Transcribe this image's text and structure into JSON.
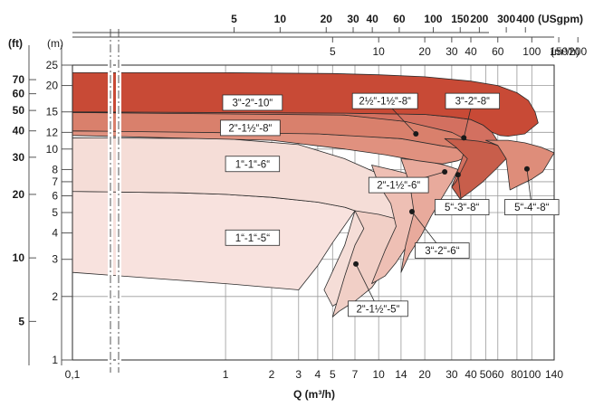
{
  "chart_data": {
    "type": "area",
    "title": "",
    "xlabel": "Q (m³/h)",
    "x_scale": "log",
    "y_scale": "log",
    "xlim": [
      0.1,
      140
    ],
    "ylim": [
      1,
      25
    ],
    "grid": true,
    "x_ticks": [
      {
        "v": 0.1,
        "t": "0,1"
      },
      {
        "v": 1,
        "t": "1"
      },
      {
        "v": 2,
        "t": "2"
      },
      {
        "v": 3,
        "t": "3"
      },
      {
        "v": 4,
        "t": "4"
      },
      {
        "v": 5,
        "t": "5"
      },
      {
        "v": 7,
        "t": "7"
      },
      {
        "v": 10,
        "t": "10"
      },
      {
        "v": 14,
        "t": "14"
      },
      {
        "v": 20,
        "t": "20"
      },
      {
        "v": 30,
        "t": "30"
      },
      {
        "v": 40,
        "t": "40"
      },
      {
        "v": 50,
        "t": "50"
      },
      {
        "v": 60,
        "t": "60"
      },
      {
        "v": 80,
        "t": "80"
      },
      {
        "v": 100,
        "t": "100"
      },
      {
        "v": 140,
        "t": "140"
      }
    ],
    "y_ticks_m": [
      {
        "v": 1,
        "t": "1"
      },
      {
        "v": 2,
        "t": "2"
      },
      {
        "v": 3,
        "t": "3"
      },
      {
        "v": 4,
        "t": "4"
      },
      {
        "v": 5,
        "t": "5"
      },
      {
        "v": 6,
        "t": "6"
      },
      {
        "v": 7,
        "t": "7"
      },
      {
        "v": 8,
        "t": "8"
      },
      {
        "v": 10,
        "t": "10"
      },
      {
        "v": 12,
        "t": "12"
      },
      {
        "v": 15,
        "t": "15"
      },
      {
        "v": 20,
        "t": "20"
      },
      {
        "v": 25,
        "t": "25"
      }
    ],
    "y_ticks_ft": [
      {
        "v": 5,
        "t": "5"
      },
      {
        "v": 10,
        "t": "10"
      },
      {
        "v": 20,
        "t": "20"
      },
      {
        "v": 30,
        "t": "30"
      },
      {
        "v": 40,
        "t": "40"
      },
      {
        "v": 50,
        "t": "50"
      },
      {
        "v": 60,
        "t": "60"
      },
      {
        "v": 70,
        "t": "70"
      }
    ],
    "top_m3h_ticks": [
      5,
      10,
      20,
      30,
      40,
      60,
      100,
      150,
      200,
      300
    ],
    "top_usgpm_ticks": [
      5,
      10,
      20,
      30,
      40,
      60,
      100,
      150,
      200,
      300,
      400
    ],
    "unit_ft": "(ft)",
    "unit_m": "(m)",
    "unit_m3h": "(m³/h)",
    "unit_usgpm": "(USgpm)",
    "series": [
      {
        "name": "1“-1“-5“",
        "color": "#f8e2de",
        "label_at": [
          1.5,
          3.8
        ],
        "points": [
          [
            0.1,
            6.3
          ],
          [
            0.5,
            6.2
          ],
          [
            1,
            6.1
          ],
          [
            2,
            5.9
          ],
          [
            4,
            5.6
          ],
          [
            6,
            5.3
          ],
          [
            7,
            5.1
          ],
          [
            6.2,
            4.5
          ],
          [
            5,
            3.6
          ],
          [
            4,
            2.8
          ],
          [
            3,
            2.15
          ],
          [
            1,
            2.3
          ],
          [
            0.1,
            2.6
          ]
        ]
      },
      {
        "name": "1“-1“-6“",
        "color": "#f5ddd7",
        "label_at": [
          1.5,
          8.5
        ],
        "points": [
          [
            0.1,
            11.3
          ],
          [
            1,
            11.2
          ],
          [
            3,
            10.5
          ],
          [
            6,
            9.0
          ],
          [
            8,
            8.2
          ],
          [
            11,
            7.4
          ],
          [
            16,
            6.5
          ],
          [
            20,
            6.0
          ],
          [
            15,
            4.8
          ],
          [
            11,
            3.4
          ],
          [
            9,
            2.6
          ],
          [
            6,
            1.95
          ],
          [
            5,
            1.8
          ],
          [
            4.4,
            2.15
          ],
          [
            6,
            3.5
          ],
          [
            7,
            5.1
          ],
          [
            6,
            5.3
          ],
          [
            4,
            5.6
          ],
          [
            2,
            5.9
          ],
          [
            1,
            6.1
          ],
          [
            0.5,
            6.2
          ],
          [
            0.1,
            6.3
          ]
        ]
      },
      {
        "name": "2“-1½“-5“",
        "color": "#f1cfc6",
        "points": [
          [
            7,
            5.1
          ],
          [
            10,
            4.9
          ],
          [
            14,
            4.6
          ],
          [
            16,
            4.4
          ],
          [
            13,
            3.2
          ],
          [
            11,
            2.7
          ],
          [
            9,
            2.2
          ],
          [
            7,
            1.9
          ],
          [
            5.5,
            1.7
          ],
          [
            5,
            1.6
          ],
          [
            6,
            2.5
          ],
          [
            7,
            3.5
          ],
          [
            8,
            4.2
          ]
        ]
      },
      {
        "name": "2“-1½“-6“",
        "color": "#eebfb4",
        "points": [
          [
            9,
            8.4
          ],
          [
            12,
            8.0
          ],
          [
            16,
            7.6
          ],
          [
            20,
            7.3
          ],
          [
            24,
            7.0
          ],
          [
            28,
            6.8
          ],
          [
            26,
            6.3
          ],
          [
            22,
            5.3
          ],
          [
            20,
            4.7
          ],
          [
            17,
            3.9
          ],
          [
            15,
            3.4
          ],
          [
            13,
            2.9
          ],
          [
            11,
            2.5
          ],
          [
            9,
            2.3
          ],
          [
            11,
            3.3
          ],
          [
            13,
            4.3
          ],
          [
            12,
            5.5
          ],
          [
            10,
            6.8
          ]
        ]
      },
      {
        "name": "3“-2“-6“",
        "color": "#e8aa9c",
        "points": [
          [
            14,
            9.0
          ],
          [
            20,
            8.8
          ],
          [
            27,
            8.4
          ],
          [
            33,
            8.0
          ],
          [
            30,
            7.0
          ],
          [
            26,
            5.9
          ],
          [
            22,
            4.8
          ],
          [
            19,
            3.9
          ],
          [
            16,
            3.2
          ],
          [
            14,
            2.6
          ],
          [
            15,
            3.5
          ],
          [
            17,
            5.0
          ],
          [
            16,
            6.8
          ]
        ]
      },
      {
        "name": "2“-1½“-8“",
        "color": "#e0917f",
        "label_at": [
          1.45,
          12.6
        ],
        "points": [
          [
            0.1,
            12.2
          ],
          [
            1,
            12.1
          ],
          [
            4,
            11.8
          ],
          [
            8,
            11.5
          ],
          [
            14,
            11.2
          ],
          [
            20,
            10.8
          ],
          [
            25,
            10.4
          ],
          [
            28,
            10.3
          ],
          [
            31,
            10.2
          ],
          [
            35,
            10.0
          ],
          [
            40,
            9.4
          ],
          [
            33,
            8.8
          ],
          [
            26,
            8.5
          ],
          [
            18,
            8.8
          ],
          [
            11,
            9.4
          ],
          [
            6,
            10.0
          ],
          [
            2,
            11.0
          ],
          [
            0.1,
            11.6
          ]
        ]
      },
      {
        "name": "2½“-1½“-8“",
        "color": "#d9806c",
        "points": [
          [
            0.1,
            14.9
          ],
          [
            1,
            14.9
          ],
          [
            3,
            14.7
          ],
          [
            6,
            14.5
          ],
          [
            10,
            14.0
          ],
          [
            15,
            13.5
          ],
          [
            20,
            13.0
          ],
          [
            25,
            12.4
          ],
          [
            30,
            12.0
          ],
          [
            38,
            11.5
          ],
          [
            35,
            10.0
          ],
          [
            25,
            10.4
          ],
          [
            14,
            11.2
          ],
          [
            4,
            11.8
          ],
          [
            0.1,
            12.2
          ]
        ]
      },
      {
        "name": "3“-2“-8“",
        "color": "#d37060",
        "points": [
          [
            0.1,
            15.0
          ],
          [
            6,
            14.8
          ],
          [
            20,
            14.6
          ],
          [
            30,
            14.2
          ],
          [
            40,
            13.8
          ],
          [
            48,
            13.0
          ],
          [
            55,
            12.0
          ],
          [
            62,
            10.5
          ],
          [
            68,
            9.0
          ],
          [
            60,
            8.4
          ],
          [
            48,
            7.8
          ],
          [
            40,
            7.3
          ],
          [
            32,
            7.0
          ],
          [
            30,
            6.6
          ],
          [
            35,
            9.0
          ],
          [
            38,
            11.0
          ],
          [
            30,
            12.0
          ],
          [
            15,
            13.5
          ],
          [
            6,
            14.5
          ],
          [
            0.1,
            14.9
          ]
        ]
      },
      {
        "name": "5“-3“-8“",
        "color": "#c85e4b",
        "points": [
          [
            27,
            11.2
          ],
          [
            35,
            11.1
          ],
          [
            45,
            10.9
          ],
          [
            55,
            10.6
          ],
          [
            65,
            10.2
          ],
          [
            75,
            9.5
          ],
          [
            68,
            9.0
          ],
          [
            58,
            8.0
          ],
          [
            48,
            7.0
          ],
          [
            40,
            6.3
          ],
          [
            34,
            5.8
          ],
          [
            30,
            6.6
          ],
          [
            32,
            7.0
          ],
          [
            38,
            9.0
          ],
          [
            32,
            10.2
          ]
        ]
      },
      {
        "name": "5“-4“-8“",
        "color": "#de8d7a",
        "points": [
          [
            50,
            11.0
          ],
          [
            70,
            11.0
          ],
          [
            90,
            10.7
          ],
          [
            115,
            10.2
          ],
          [
            140,
            9.6
          ],
          [
            128,
            8.6
          ],
          [
            118,
            7.8
          ],
          [
            100,
            7.2
          ],
          [
            85,
            6.8
          ],
          [
            72,
            6.4
          ],
          [
            70,
            7.6
          ],
          [
            68,
            9.0
          ],
          [
            60,
            10.4
          ]
        ]
      },
      {
        "name": "3“-2“-10“",
        "color": "#c84a36",
        "label_at": [
          1.5,
          16.6
        ],
        "points": [
          [
            0.1,
            23.0
          ],
          [
            1,
            23.0
          ],
          [
            5,
            22.8
          ],
          [
            10,
            22.5
          ],
          [
            20,
            22.0
          ],
          [
            40,
            21.0
          ],
          [
            60,
            20.0
          ],
          [
            80,
            18.5
          ],
          [
            95,
            17.0
          ],
          [
            105,
            15.0
          ],
          [
            110,
            13.3
          ],
          [
            90,
            11.8
          ],
          [
            70,
            11.5
          ],
          [
            62,
            11.6
          ],
          [
            55,
            12.0
          ],
          [
            48,
            13.0
          ],
          [
            40,
            13.8
          ],
          [
            30,
            14.2
          ],
          [
            20,
            14.6
          ],
          [
            6,
            14.8
          ],
          [
            0.1,
            15.0
          ]
        ]
      }
    ],
    "callouts": [
      {
        "text": "2½“-1½“-8“",
        "point": [
          17.5,
          11.8
        ],
        "box_at": [
          11,
          16.9
        ]
      },
      {
        "text": "3“-2“-8“",
        "point": [
          36,
          11.3
        ],
        "box_at": [
          41,
          16.9
        ]
      },
      {
        "text": "2“-1½“-6“",
        "point": [
          27,
          7.8
        ],
        "box_at": [
          13.5,
          6.75
        ]
      },
      {
        "text": "5“-3“-8“",
        "point": [
          33,
          7.55
        ],
        "box_at": [
          35,
          5.3
        ]
      },
      {
        "text": "5“-4“-8“",
        "point": [
          93,
          8.05
        ],
        "box_at": [
          100,
          5.3
        ]
      },
      {
        "text": "3“-2“-6“",
        "point": [
          16.5,
          5.05
        ],
        "box_at": [
          26,
          3.3
        ]
      },
      {
        "text": "2“-1½“-5“",
        "point": [
          7.1,
          2.85
        ],
        "box_at": [
          9.9,
          1.75
        ]
      }
    ]
  }
}
